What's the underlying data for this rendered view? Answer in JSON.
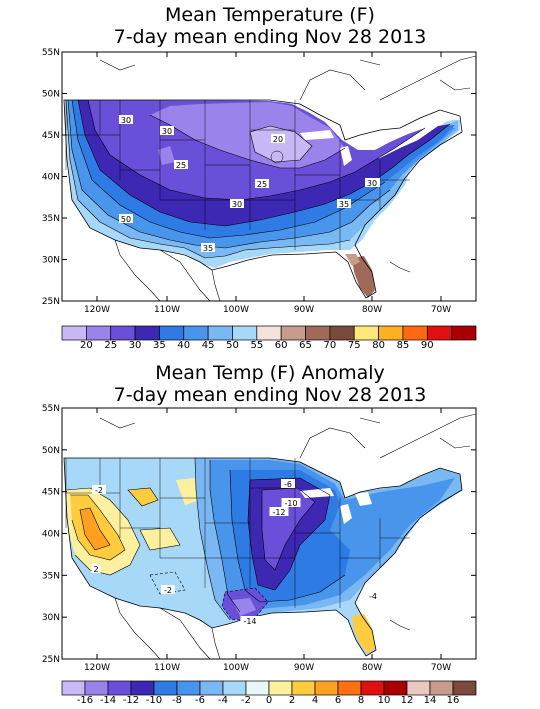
{
  "panels": [
    {
      "title_line1": "Mean Temperature (F)",
      "title_line2": "7-day mean ending Nov 28 2013",
      "lat_ticks": [
        "55N",
        "50N",
        "45N",
        "40N",
        "35N",
        "30N",
        "25N"
      ],
      "lon_ticks": [
        "120W",
        "110W",
        "100W",
        "90W",
        "80W",
        "70W"
      ],
      "colorbar": {
        "colors": [
          "#c8b8f5",
          "#9a84ec",
          "#6a4fd8",
          "#3d28b4",
          "#2f7be6",
          "#4a95ec",
          "#7ab8f4",
          "#a8d8f8",
          "#f5e2dc",
          "#c89c8c",
          "#a06a5a",
          "#7a4a3c",
          "#ffe878",
          "#ffb020",
          "#ff6a10",
          "#e01010",
          "#a80000"
        ],
        "labels": [
          "20",
          "25",
          "30",
          "35",
          "40",
          "45",
          "50",
          "55",
          "60",
          "65",
          "70",
          "75",
          "80",
          "85",
          "90"
        ]
      },
      "contour_labels": [
        "30",
        "30",
        "25",
        "25",
        "30",
        "20",
        "35",
        "50",
        "35",
        "30",
        "30"
      ]
    },
    {
      "title_line1": "Mean Temp (F) Anomaly",
      "title_line2": "7-day mean ending Nov 28 2013",
      "lat_ticks": [
        "55N",
        "50N",
        "45N",
        "40N",
        "35N",
        "30N",
        "25N"
      ],
      "lon_ticks": [
        "120W",
        "110W",
        "100W",
        "90W",
        "80W",
        "70W"
      ],
      "colorbar": {
        "colors": [
          "#c8b8f5",
          "#9a84ec",
          "#6a4fd8",
          "#3d28b4",
          "#2f7be6",
          "#4a95ec",
          "#7ab8f4",
          "#a8d8f8",
          "#e8f8f8",
          "#fff0a0",
          "#ffcc40",
          "#ffa020",
          "#ff7010",
          "#e01010",
          "#a80000",
          "#e8c8c0",
          "#c89c8c",
          "#7a4a3c"
        ],
        "labels": [
          "-16",
          "-14",
          "-12",
          "-10",
          "-8",
          "-6",
          "-4",
          "-2",
          "0",
          "2",
          "4",
          "6",
          "8",
          "10",
          "12",
          "14",
          "16"
        ]
      },
      "contour_labels": [
        "-6",
        "-10",
        "-12",
        "-14",
        "-2",
        "-4",
        "-2",
        "2"
      ]
    }
  ]
}
